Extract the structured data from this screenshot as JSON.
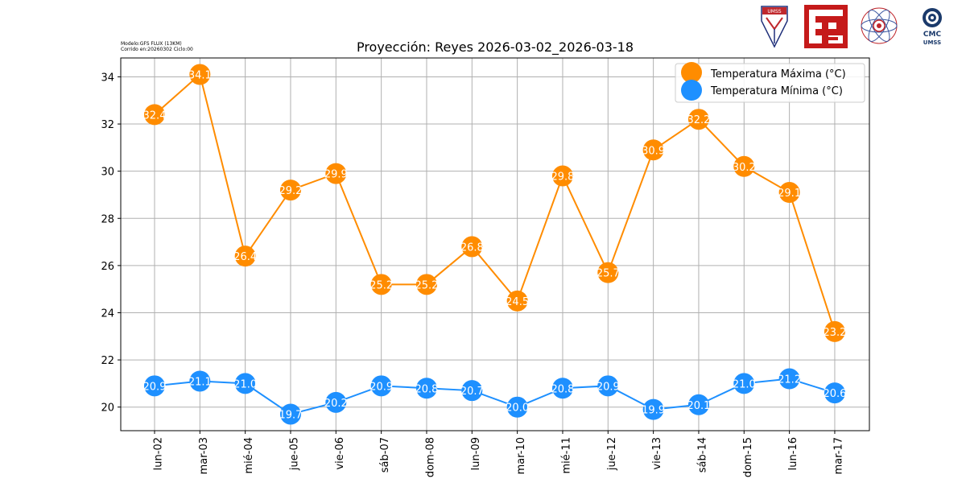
{
  "meta": {
    "model": "Modelo:GFS FLUX (13KM)",
    "run": "Corrido en:20260302 Ciclo:00"
  },
  "logos": {
    "umss_shield": "UMSS",
    "cmc_line1": "CMC",
    "cmc_line2": "UMSS"
  },
  "colors": {
    "max": "#ff8c00",
    "min": "#1e90ff",
    "grid": "#b0b0b0"
  },
  "chart_data": {
    "type": "line",
    "title": "Proyección: Reyes 2026-03-02_2026-03-18",
    "xlabel": "",
    "ylabel": "",
    "ylim": [
      19,
      34.8
    ],
    "yticks": [
      20,
      22,
      24,
      26,
      28,
      30,
      32,
      34
    ],
    "grid": true,
    "legend_position": "top-right",
    "categories": [
      "lun-02",
      "mar-03",
      "mié-04",
      "jue-05",
      "vie-06",
      "sáb-07",
      "dom-08",
      "lun-09",
      "mar-10",
      "mié-11",
      "jue-12",
      "vie-13",
      "sáb-14",
      "dom-15",
      "lun-16",
      "mar-17"
    ],
    "series": [
      {
        "name": "Temperatura Máxima  (°C)",
        "values": [
          32.4,
          34.1,
          26.4,
          29.2,
          29.9,
          25.2,
          25.2,
          26.8,
          24.5,
          29.8,
          25.7,
          30.9,
          32.2,
          30.2,
          29.1,
          23.2
        ],
        "labels": [
          "32.4",
          "34.1",
          "26.4",
          "29.2",
          "29.9",
          "25.2",
          "25.2",
          "26.8",
          "24.5",
          "29.8",
          "25.7",
          "30.9",
          "32.2",
          "30.2",
          "29.1",
          "23.2"
        ]
      },
      {
        "name": "Temperatura Mínima  (°C)",
        "values": [
          20.9,
          21.1,
          21.0,
          19.7,
          20.2,
          20.9,
          20.8,
          20.7,
          20.0,
          20.8,
          20.9,
          19.9,
          20.1,
          21.0,
          21.2,
          20.6
        ],
        "labels": [
          "20.9",
          "21.1",
          "21.0",
          "19.7",
          "20.2",
          "20.9",
          "20.8",
          "20.7",
          "20.0",
          "20.8",
          "20.9",
          "19.9",
          "20.1",
          "21.0",
          "21.2",
          "20.6"
        ]
      }
    ]
  }
}
